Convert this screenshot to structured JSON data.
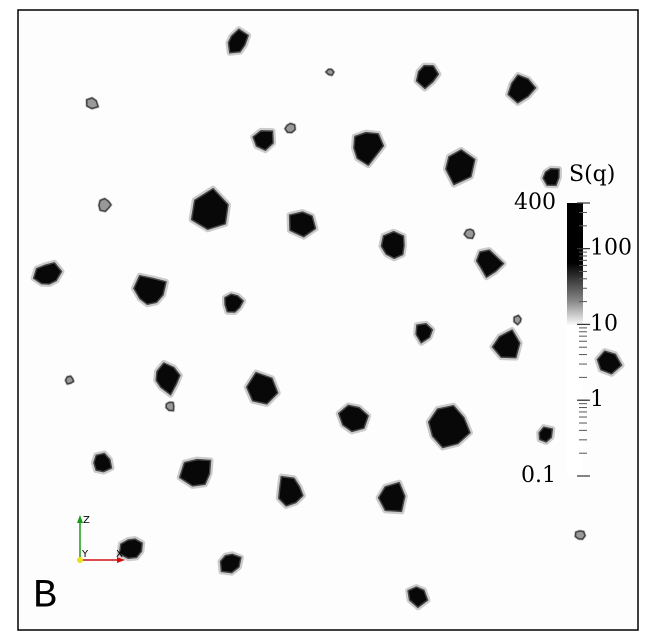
{
  "panel_label": "B",
  "triad": {
    "z": "Z",
    "y": "Y",
    "x": "X"
  },
  "colorbar": {
    "title": "S(q)",
    "scale": "log",
    "lim": [
      0.1,
      400
    ],
    "ticks": [
      0.1,
      1,
      10,
      100,
      400
    ]
  }
}
